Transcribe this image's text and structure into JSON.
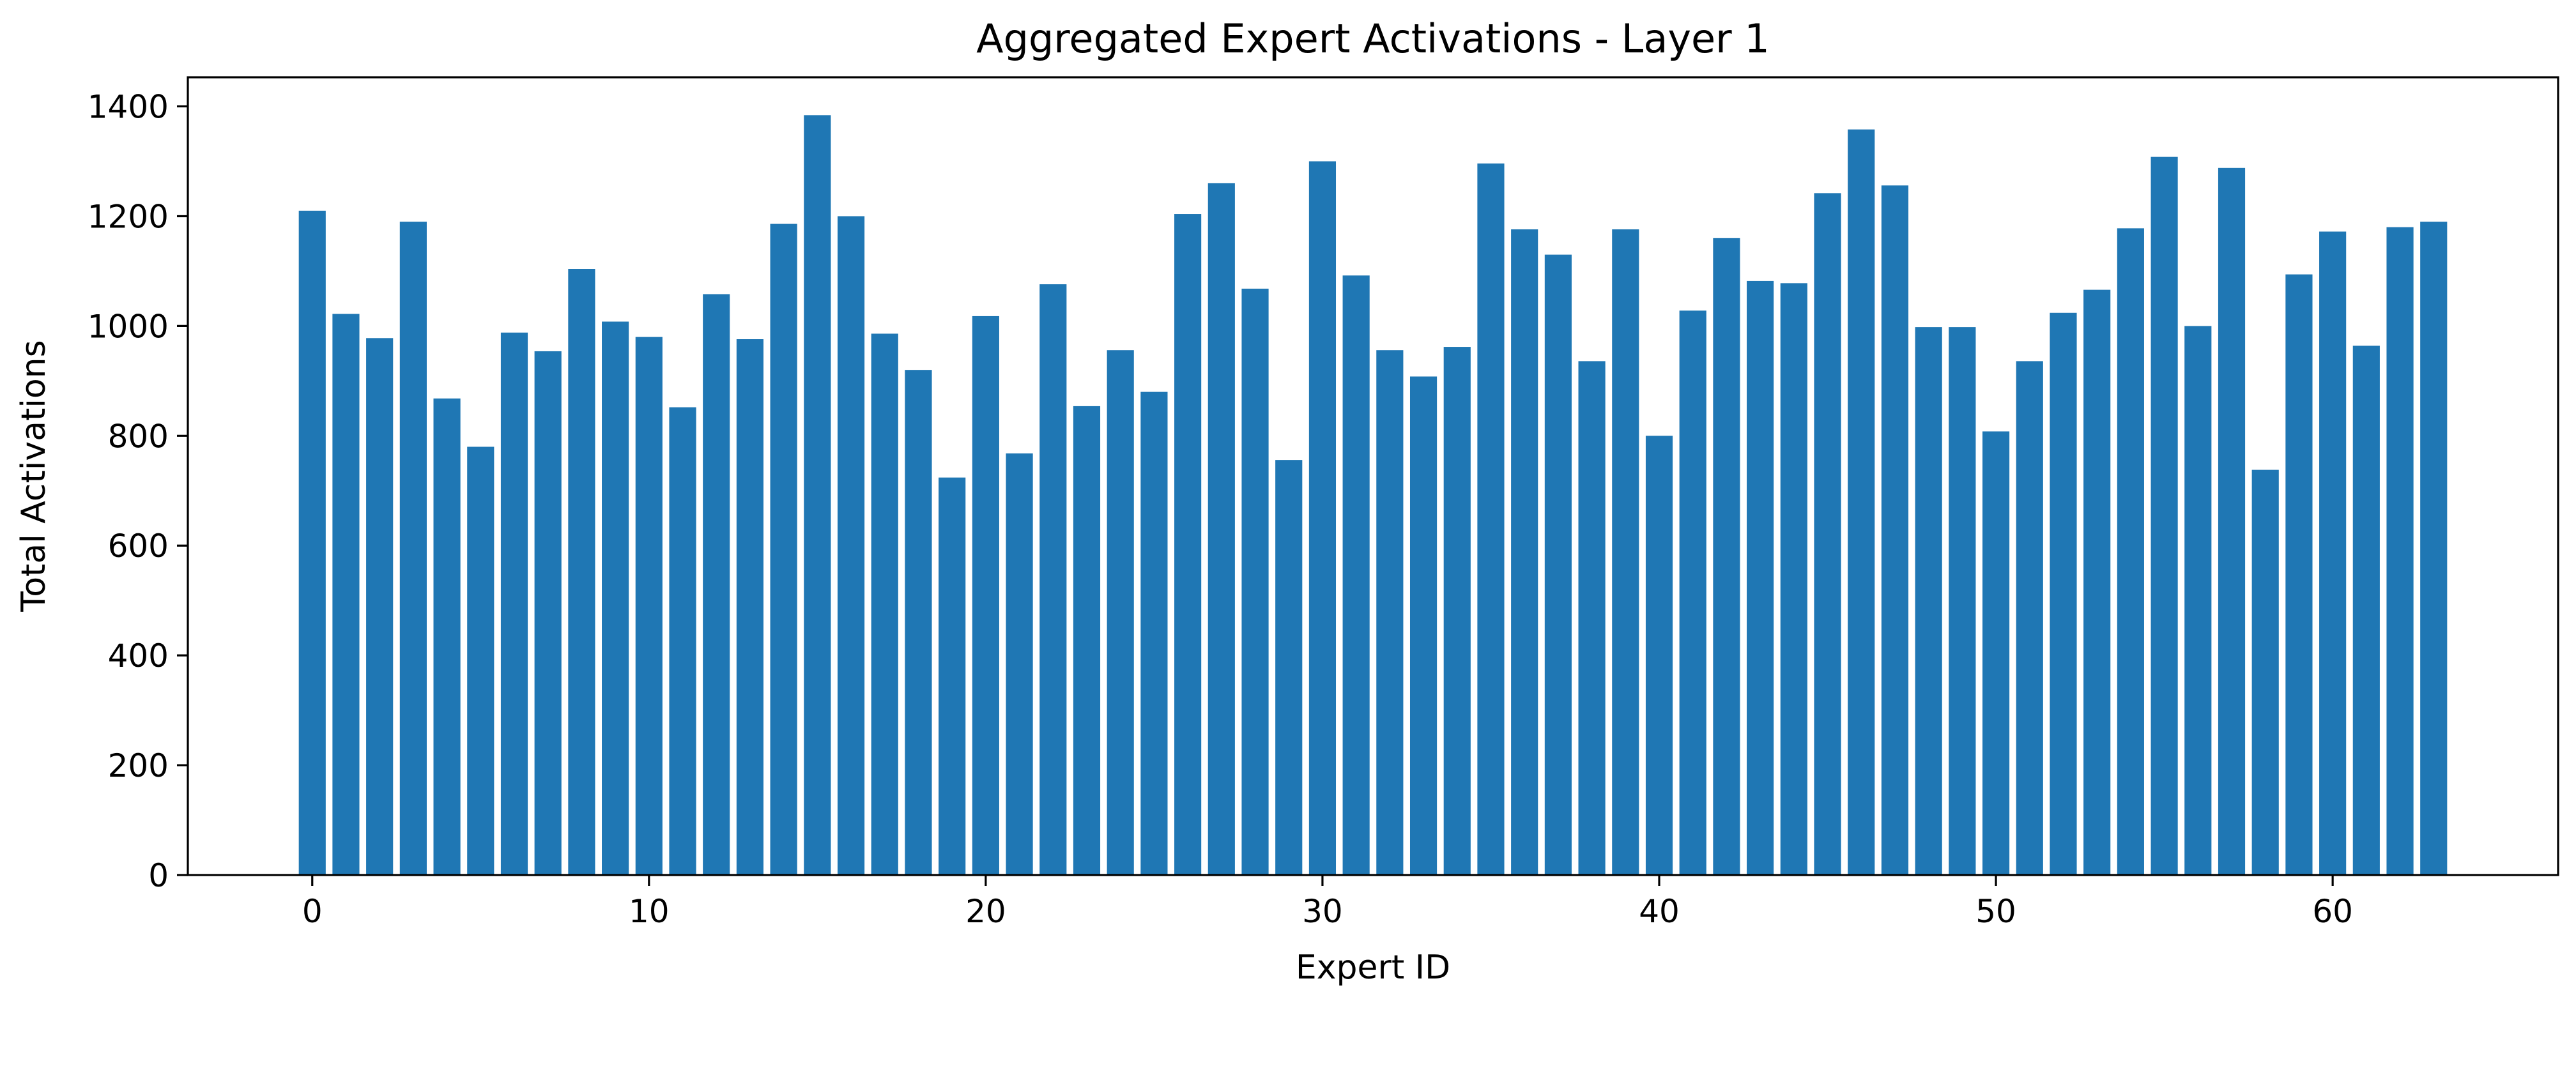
{
  "chart_data": {
    "type": "bar",
    "title": "Aggregated Expert Activations - Layer 1",
    "xlabel": "Expert ID",
    "ylabel": "Total Activations",
    "x": [
      0,
      1,
      2,
      3,
      4,
      5,
      6,
      7,
      8,
      9,
      10,
      11,
      12,
      13,
      14,
      15,
      16,
      17,
      18,
      19,
      20,
      21,
      22,
      23,
      24,
      25,
      26,
      27,
      28,
      29,
      30,
      31,
      32,
      33,
      34,
      35,
      36,
      37,
      38,
      39,
      40,
      41,
      42,
      43,
      44,
      45,
      46,
      47,
      48,
      49,
      50,
      51,
      52,
      53,
      54,
      55,
      56,
      57,
      58,
      59,
      60,
      61,
      62,
      63
    ],
    "values": [
      1210,
      1022,
      978,
      1190,
      868,
      780,
      988,
      954,
      1104,
      1008,
      980,
      852,
      1058,
      976,
      1186,
      1384,
      1200,
      986,
      920,
      724,
      1018,
      768,
      1076,
      854,
      956,
      880,
      1204,
      1260,
      1068,
      756,
      1300,
      1092,
      956,
      908,
      962,
      1296,
      1176,
      1130,
      936,
      1176,
      800,
      1028,
      1160,
      1082,
      1078,
      1242,
      1358,
      1256,
      998,
      998,
      808,
      936,
      1024,
      1066,
      1178,
      1308,
      1000,
      1288,
      738,
      1094,
      1172,
      964,
      1180,
      1190
    ],
    "bar_color": "#1f77b4",
    "xlim": [
      -3.695,
      66.695
    ],
    "ylim": [
      0,
      1453
    ],
    "xticks": [
      0,
      10,
      20,
      30,
      40,
      50,
      60
    ],
    "yticks": [
      0,
      200,
      400,
      600,
      800,
      1000,
      1200,
      1400
    ],
    "grid": false,
    "legend": false
  }
}
